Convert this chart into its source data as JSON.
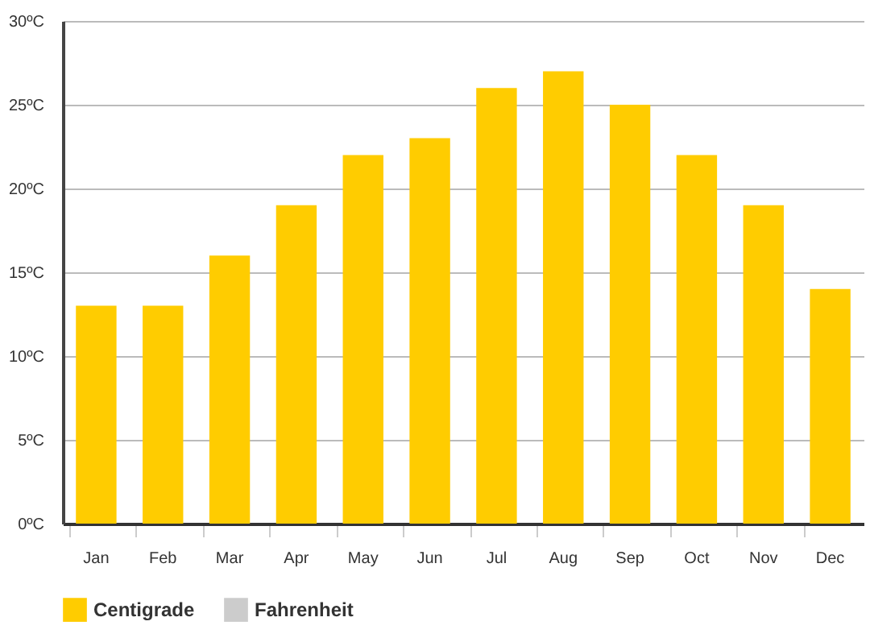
{
  "chart_data": {
    "type": "bar",
    "categories": [
      "Jan",
      "Feb",
      "Mar",
      "Apr",
      "May",
      "Jun",
      "Jul",
      "Aug",
      "Sep",
      "Oct",
      "Nov",
      "Dec"
    ],
    "series": [
      {
        "name": "Centigrade",
        "color": "#ffcc00",
        "values": [
          13,
          13,
          16,
          19,
          22,
          23,
          26,
          27,
          25,
          22,
          19,
          14
        ]
      },
      {
        "name": "Fahrenheit",
        "color": "#cccccc",
        "values": [
          null,
          null,
          null,
          null,
          null,
          null,
          null,
          null,
          null,
          null,
          null,
          null
        ]
      }
    ],
    "ylim": [
      0,
      30
    ],
    "yticks": [
      {
        "value": 0,
        "label": "0ºC"
      },
      {
        "value": 5,
        "label": "5ºC"
      },
      {
        "value": 10,
        "label": "10ºC"
      },
      {
        "value": 15,
        "label": "15ºC"
      },
      {
        "value": 20,
        "label": "20ºC"
      },
      {
        "value": 25,
        "label": "25ºC"
      },
      {
        "value": 30,
        "label": "30ºC"
      }
    ],
    "grid": "y",
    "legend": "bottom"
  }
}
